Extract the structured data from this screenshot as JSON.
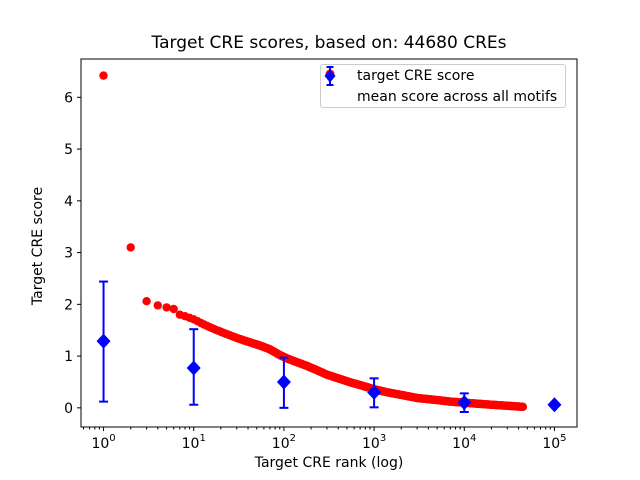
{
  "figure": {
    "background": "#ffffff",
    "frame_color": "#000000"
  },
  "chart_data": {
    "type": "scatter",
    "title": "Target CRE scores, based on: 44680 CREs",
    "xlabel": "Target CRE rank (log)",
    "ylabel": "Target CRE score",
    "x_scale": "log",
    "xlim_log10": [
      -0.25,
      5.25
    ],
    "ylim": [
      -0.37,
      6.74
    ],
    "x_tick_labels": [
      "10^0",
      "10^1",
      "10^2",
      "10^3",
      "10^4",
      "10^5"
    ],
    "x_tick_exponents": [
      0,
      1,
      2,
      3,
      4,
      5
    ],
    "y_ticks": [
      0,
      1,
      2,
      3,
      4,
      5,
      6
    ],
    "grid": false,
    "legend": {
      "position": "upper right",
      "entries": [
        {
          "label": "target CRE score",
          "marker": "circle",
          "color": "#ff0000"
        },
        {
          "label": "mean score across all motifs",
          "marker": "diamond-errorbar",
          "color": "#0000ff"
        }
      ]
    },
    "series": [
      {
        "name": "target CRE score",
        "type": "scatter",
        "marker": "circle",
        "color": "#ff0000",
        "n_points_depicted": 44680,
        "sampled_points": [
          [
            1,
            6.42
          ],
          [
            2,
            3.1
          ],
          [
            3,
            2.06
          ],
          [
            4,
            1.98
          ],
          [
            5,
            1.94
          ],
          [
            6,
            1.91
          ],
          [
            7,
            1.8
          ],
          [
            8,
            1.77
          ],
          [
            9,
            1.74
          ],
          [
            10,
            1.71
          ],
          [
            12,
            1.64
          ],
          [
            15,
            1.56
          ],
          [
            18,
            1.5
          ],
          [
            22,
            1.44
          ],
          [
            28,
            1.37
          ],
          [
            35,
            1.31
          ],
          [
            43,
            1.26
          ],
          [
            55,
            1.2
          ],
          [
            70,
            1.13
          ],
          [
            90,
            1.02
          ],
          [
            110,
            0.95
          ],
          [
            140,
            0.88
          ],
          [
            180,
            0.81
          ],
          [
            230,
            0.73
          ],
          [
            300,
            0.64
          ],
          [
            400,
            0.57
          ],
          [
            550,
            0.49
          ],
          [
            700,
            0.44
          ],
          [
            1000,
            0.36
          ],
          [
            1400,
            0.3
          ],
          [
            2000,
            0.25
          ],
          [
            3000,
            0.19
          ],
          [
            5000,
            0.15
          ],
          [
            7000,
            0.12
          ],
          [
            10000,
            0.1
          ],
          [
            14000,
            0.08
          ],
          [
            20000,
            0.06
          ],
          [
            30000,
            0.04
          ],
          [
            44680,
            0.02
          ]
        ]
      },
      {
        "name": "mean score across all motifs",
        "type": "errorbar",
        "marker": "diamond",
        "color": "#0000ff",
        "points": [
          {
            "rank": 1,
            "mean": 1.29,
            "lo": 0.12,
            "hi": 2.44
          },
          {
            "rank": 10,
            "mean": 0.77,
            "lo": 0.06,
            "hi": 1.52
          },
          {
            "rank": 100,
            "mean": 0.5,
            "lo": 0.0,
            "hi": 0.97
          },
          {
            "rank": 1000,
            "mean": 0.3,
            "lo": 0.01,
            "hi": 0.57
          },
          {
            "rank": 10000,
            "mean": 0.1,
            "lo": -0.08,
            "hi": 0.28
          },
          {
            "rank": 100000,
            "mean": 0.06,
            "lo": 0.06,
            "hi": 0.06
          }
        ]
      }
    ]
  }
}
